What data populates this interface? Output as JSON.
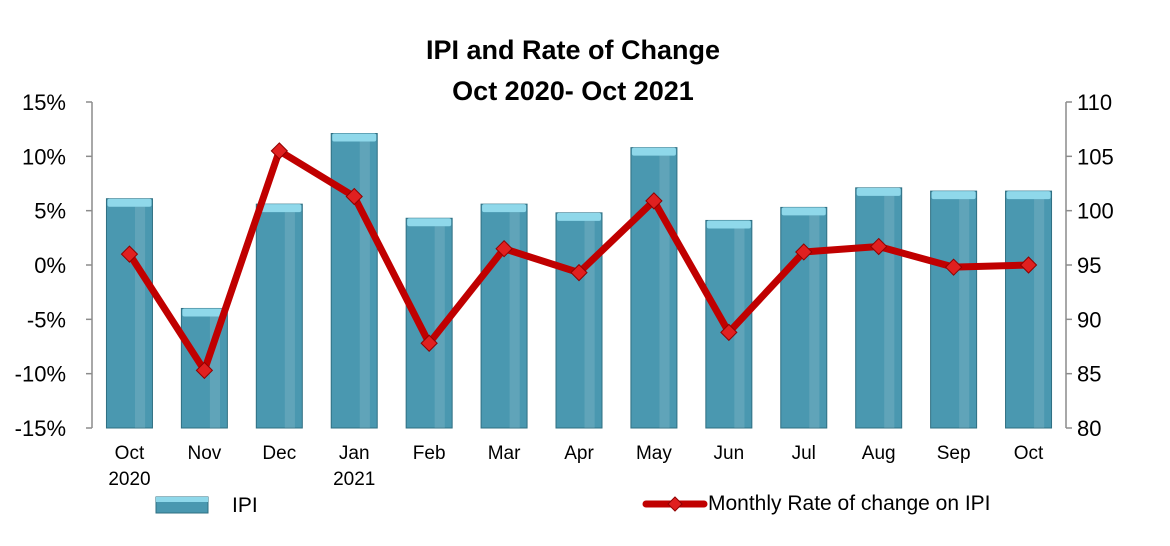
{
  "chart_data": {
    "type": "bar",
    "title_line1": "IPI and Rate of Change",
    "title_line2": "Oct 2020- Oct 2021",
    "categories": [
      [
        "Oct",
        "2020"
      ],
      [
        "Nov"
      ],
      [
        "Dec"
      ],
      [
        "Jan",
        "2021"
      ],
      [
        "Feb"
      ],
      [
        "Mar"
      ],
      [
        "Apr"
      ],
      [
        "May"
      ],
      [
        "Jun"
      ],
      [
        "Jul"
      ],
      [
        "Aug"
      ],
      [
        "Sep"
      ],
      [
        "Oct"
      ]
    ],
    "left_axis": {
      "ylim": [
        -0.15,
        0.15
      ],
      "ticks": [
        "15%",
        "10%",
        "5%",
        "0%",
        "-5%",
        "-10%",
        "-15%"
      ]
    },
    "right_axis": {
      "ylim": [
        80,
        110
      ],
      "ticks": [
        "110",
        "105",
        "100",
        "95",
        "90",
        "85",
        "80"
      ]
    },
    "series": [
      {
        "name": "IPI",
        "type": "bar",
        "axis": "right",
        "values": [
          101.1,
          91.0,
          100.6,
          107.1,
          99.3,
          100.6,
          99.8,
          105.8,
          99.1,
          100.3,
          102.1,
          101.8,
          101.8
        ]
      },
      {
        "name": "Monthly Rate of change on IPI",
        "type": "line",
        "axis": "left",
        "values": [
          0.01,
          -0.097,
          0.105,
          0.063,
          -0.072,
          0.015,
          -0.007,
          0.059,
          -0.062,
          0.012,
          0.017,
          -0.002,
          0.0
        ]
      }
    ],
    "colors": {
      "bar": "#4a98b0",
      "bar_top": "#8fd8ea",
      "line": "#c00000",
      "marker": "#e02020"
    },
    "legend": {
      "placement": "bottom"
    }
  }
}
